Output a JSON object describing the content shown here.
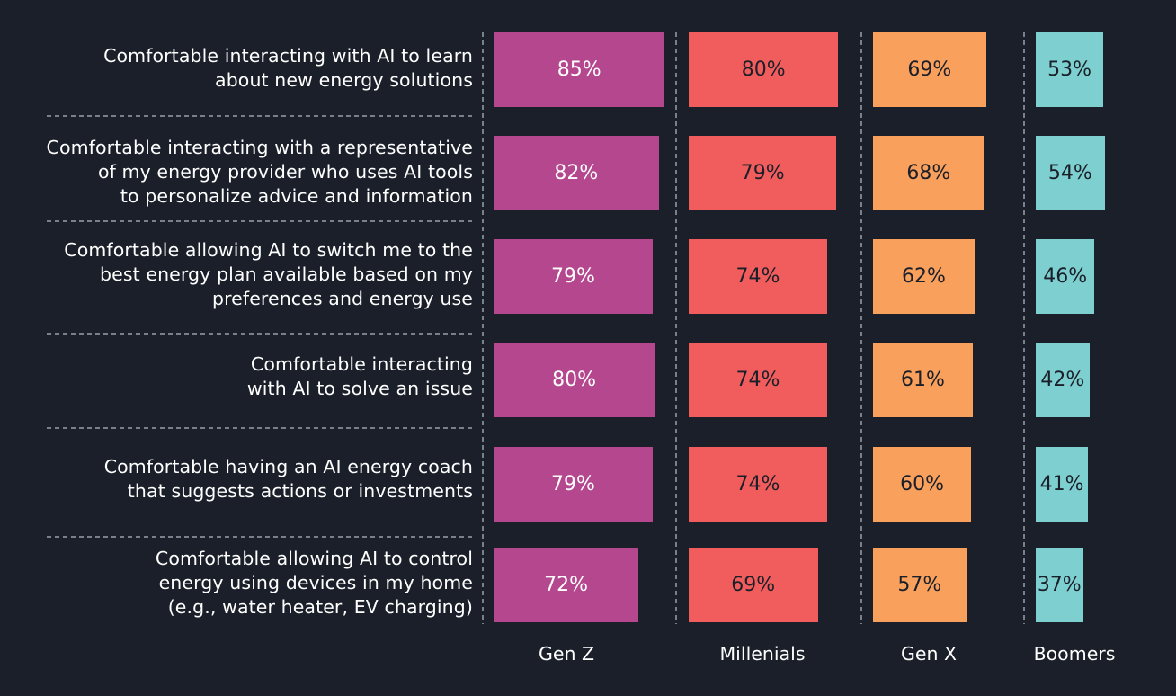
{
  "chart_data": {
    "type": "bar",
    "orientation": "horizontal",
    "layout": "small-multiples",
    "categories": [
      [
        "Comfortable interacting with AI to learn",
        "about new energy solutions"
      ],
      [
        "Comfortable interacting with a representative",
        "of my energy provider who uses AI tools",
        "to personalize advice and information"
      ],
      [
        "Comfortable allowing AI to switch me to the",
        "best energy plan available based on my",
        "preferences and energy use"
      ],
      [
        "Comfortable interacting",
        "with AI to solve an issue"
      ],
      [
        "Comfortable having an AI energy coach",
        "that suggests actions or investments"
      ],
      [
        "Comfortable allowing AI to control",
        "energy using devices in my home",
        "(e.g., water heater, EV charging)"
      ]
    ],
    "series": [
      {
        "name": "Gen Z",
        "color": "#b5478f",
        "label_color": "#ffffff",
        "values": [
          85,
          82,
          79,
          80,
          79,
          72
        ],
        "labels": [
          "85%",
          "82%",
          "79%",
          "80%",
          "79%",
          "72%"
        ]
      },
      {
        "name": "Millenials",
        "color": "#f15d5c",
        "label_color": "#1a1f29",
        "values": [
          80,
          79,
          74,
          74,
          74,
          69
        ],
        "labels": [
          "80%",
          "79%",
          "74%",
          "74%",
          "74%",
          "69%"
        ]
      },
      {
        "name": "Gen X",
        "color": "#f9a05c",
        "label_color": "#1a1f29",
        "values": [
          69,
          68,
          62,
          61,
          60,
          57
        ],
        "labels": [
          "69%",
          "68%",
          "62%",
          "61%",
          "60%",
          "57%"
        ]
      },
      {
        "name": "Boomers",
        "color": "#7ecfcf",
        "label_color": "#1a1f29",
        "values": [
          53,
          54,
          46,
          42,
          41,
          37
        ],
        "labels": [
          "53%",
          "54%",
          "46%",
          "42%",
          "41%",
          "37%"
        ]
      }
    ],
    "title": "",
    "xlabel": "",
    "ylabel": "",
    "grid": false,
    "legend": "bottom"
  }
}
